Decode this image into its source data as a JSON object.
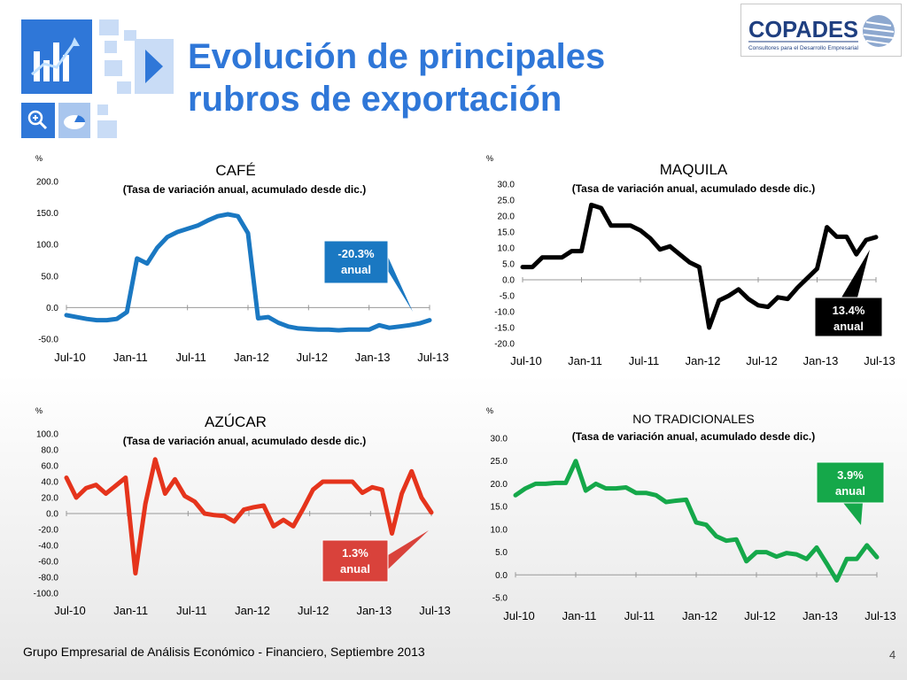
{
  "slide": {
    "title_line1": "Evolución de principales",
    "title_line2": "rubros de exportación",
    "brand_name": "COPADES",
    "brand_tagline": "Consultores para el Desarrollo Empresarial",
    "footer": "Grupo Empresarial de Análisis Económico - Financiero, Septiembre 2013",
    "page_number": "4",
    "icons": [
      "chart-growth-icon",
      "play-arrow-icon",
      "zoom-in-icon",
      "pie-chart-icon"
    ]
  },
  "chart_data": [
    {
      "id": "cafe",
      "type": "line",
      "title": "CAFÉ",
      "subtitle": "(Tasa de variación anual, acumulado desde dic.)",
      "ylabel": "%",
      "color": "#1a78c2",
      "ylim": [
        -50,
        200
      ],
      "yticks": [
        -50,
        0,
        50,
        100,
        150,
        200
      ],
      "tick_decimals": 1,
      "xlim": [
        0,
        36
      ],
      "xtick_labels": [
        "Jul-10",
        "Jan-11",
        "Jul-11",
        "Jan-12",
        "Jul-12",
        "Jan-13",
        "Jul-13"
      ],
      "values": [
        -12,
        -15,
        -18,
        -20,
        -20,
        -18,
        -7,
        78,
        70,
        95,
        112,
        120,
        125,
        130,
        138,
        145,
        148,
        145,
        118,
        -17,
        -15,
        -24,
        -30,
        -33,
        -34,
        -35,
        -35,
        -36,
        -35,
        -35,
        -35,
        -28,
        -32,
        -30,
        -28,
        -25,
        -20
      ],
      "callout": {
        "text_line1": "-20.3%",
        "text_line2": "anual",
        "bg": "#1a78c2"
      }
    },
    {
      "id": "maquila",
      "type": "line",
      "title": "MAQUILA",
      "subtitle": "(Tasa de variación anual, acumulado desde dic.)",
      "ylabel": "%",
      "color": "#000000",
      "ylim": [
        -20,
        30
      ],
      "yticks": [
        -20,
        -15,
        -10,
        -5,
        0,
        5,
        10,
        15,
        20,
        25,
        30
      ],
      "tick_decimals": 1,
      "xlim": [
        0,
        36
      ],
      "xtick_labels": [
        "Jul-10",
        "Jan-11",
        "Jul-11",
        "Jan-12",
        "Jul-12",
        "Jan-13",
        "Jul-13"
      ],
      "values": [
        4,
        4,
        7,
        7,
        7,
        9,
        9,
        23.5,
        22.5,
        17,
        17,
        17,
        15.5,
        13,
        9.5,
        10.5,
        8,
        5.5,
        4,
        -15,
        -6.5,
        -5,
        -3,
        -6,
        -8,
        -8.5,
        -5.5,
        -6,
        -2.5,
        0.5,
        3.5,
        16.5,
        13.5,
        13.5,
        8,
        12.5,
        13.4
      ],
      "callout": {
        "text_line1": "13.4%",
        "text_line2": "anual",
        "bg": "#000000"
      }
    },
    {
      "id": "azucar",
      "type": "line",
      "title": "AZÚCAR",
      "subtitle": "(Tasa de variación anual, acumulado desde dic.)",
      "ylabel": "%",
      "color": "#e5341c",
      "ylim": [
        -100,
        100
      ],
      "yticks": [
        -100,
        -80,
        -60,
        -40,
        -20,
        0,
        20,
        40,
        60,
        80,
        100
      ],
      "tick_decimals": 1,
      "xlim": [
        0,
        36
      ],
      "xtick_labels": [
        "Jul-10",
        "Jan-11",
        "Jul-11",
        "Jan-12",
        "Jul-12",
        "Jan-13",
        "Jul-13"
      ],
      "values": [
        45,
        20,
        32,
        36,
        25,
        35,
        45,
        -75,
        12,
        68,
        25,
        43,
        22,
        15,
        0,
        -2,
        -3,
        -10,
        5,
        8,
        10,
        -16,
        -8,
        -16,
        6,
        30,
        40,
        40,
        40,
        40,
        26,
        33,
        30,
        -25,
        25,
        53,
        20,
        1.3
      ],
      "callout": {
        "text_line1": "1.3%",
        "text_line2": "anual",
        "bg": "#d9423b"
      }
    },
    {
      "id": "no-tradicionales",
      "type": "line",
      "title": "NO TRADICIONALES",
      "subtitle": "(Tasa de variación anual, acumulado desde dic.)",
      "ylabel": "%",
      "color": "#15a84a",
      "ylim": [
        -5,
        30
      ],
      "yticks": [
        -5,
        0,
        5,
        10,
        15,
        20,
        25,
        30
      ],
      "tick_decimals": 1,
      "xlim": [
        0,
        36
      ],
      "xtick_labels": [
        "Jul-10",
        "Jan-11",
        "Jul-11",
        "Jan-12",
        "Jul-12",
        "Jan-13",
        "Jul-13"
      ],
      "values": [
        17.5,
        19,
        20,
        20,
        20.2,
        20.2,
        25,
        18.5,
        20,
        19,
        19,
        19.2,
        18,
        18,
        17.5,
        16,
        16.3,
        16.5,
        11.5,
        11,
        8.5,
        7.5,
        7.8,
        3,
        5,
        5,
        4,
        4.8,
        4.5,
        3.5,
        6,
        2.5,
        -1.2,
        3.5,
        3.5,
        6.5,
        3.9
      ],
      "callout": {
        "text_line1": "3.9%",
        "text_line2": "anual",
        "bg": "#15a84a"
      }
    }
  ]
}
